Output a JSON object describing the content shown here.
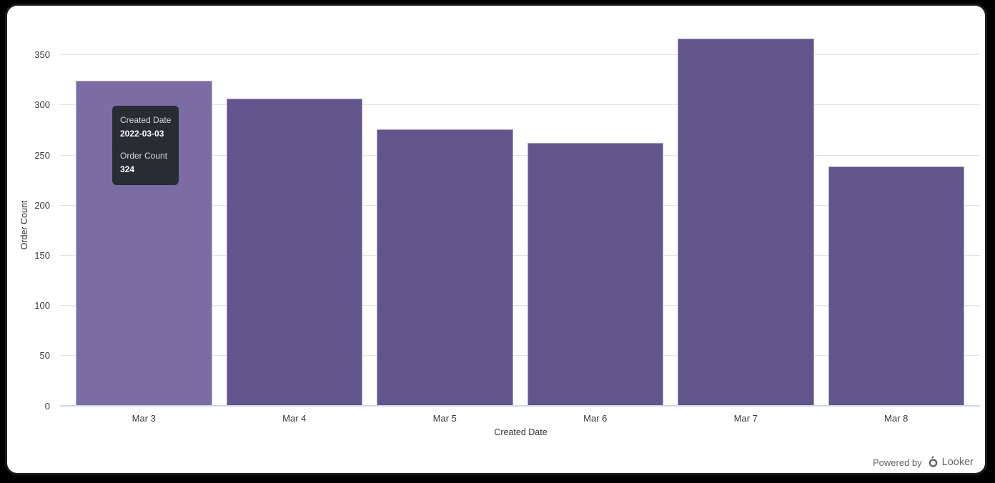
{
  "chart_data": {
    "type": "bar",
    "title": "",
    "categories": [
      "Mar 3",
      "Mar 4",
      "Mar 5",
      "Mar 6",
      "Mar 7",
      "Mar 8"
    ],
    "values": [
      324,
      306,
      276,
      262,
      366,
      239
    ],
    "xlabel": "Created Date",
    "ylabel": "Order Count",
    "ylim": [
      0,
      350
    ],
    "yticks": [
      0,
      50,
      100,
      150,
      200,
      250,
      300,
      350
    ],
    "grid": true,
    "legend": "none",
    "hovered_index": 0
  },
  "tooltip": {
    "dimension_label": "Created Date",
    "dimension_value": "2022-03-03",
    "measure_label": "Order Count",
    "measure_value": "324"
  },
  "footer": {
    "powered_by": "Powered by",
    "brand": "Looker"
  },
  "colors": {
    "bar": "#61558C",
    "bar_hover": "#7B6CA4",
    "tooltip_bg": "#262D33",
    "axis_line": "#CCD6EB",
    "gridline": "#E4E4E4",
    "axis_text": "#383838",
    "footer_text": "#5F6368",
    "outer_background": "#000000",
    "card_background": "#FFFFFF"
  }
}
